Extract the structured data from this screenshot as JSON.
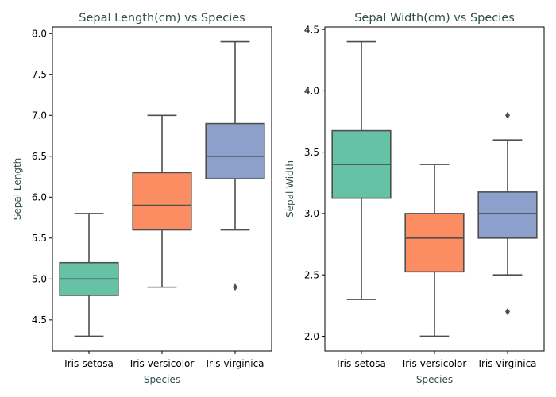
{
  "chart_data": [
    {
      "type": "box",
      "title": "Sepal Length(cm) vs Species",
      "xlabel": "Species",
      "ylabel": "Sepal Length",
      "categories": [
        "Iris-setosa",
        "Iris-versicolor",
        "Iris-virginica"
      ],
      "ylim": [
        4.12,
        8.08
      ],
      "yticks": [
        4.5,
        5.0,
        5.5,
        6.0,
        6.5,
        7.0,
        7.5,
        8.0
      ],
      "ytick_labels": [
        "4.5",
        "5.0",
        "5.5",
        "6.0",
        "6.5",
        "7.0",
        "7.5",
        "8.0"
      ],
      "boxes": [
        {
          "category": "Iris-setosa",
          "whisker_low": 4.3,
          "q1": 4.8,
          "median": 5.0,
          "q3": 5.2,
          "whisker_high": 5.8,
          "outliers": [],
          "color": "#66c2a5"
        },
        {
          "category": "Iris-versicolor",
          "whisker_low": 4.9,
          "q1": 5.6,
          "median": 5.9,
          "q3": 6.3,
          "whisker_high": 7.0,
          "outliers": [],
          "color": "#fc8d62"
        },
        {
          "category": "Iris-virginica",
          "whisker_low": 5.6,
          "q1": 6.225,
          "median": 6.5,
          "q3": 6.9,
          "whisker_high": 7.9,
          "outliers": [
            4.9
          ],
          "color": "#8da0cb"
        }
      ],
      "grid": false,
      "legend": "none"
    },
    {
      "type": "box",
      "title": "Sepal Width(cm) vs Species",
      "xlabel": "Species",
      "ylabel": "Sepal Width",
      "categories": [
        "Iris-setosa",
        "Iris-versicolor",
        "Iris-virginica"
      ],
      "ylim": [
        1.88,
        4.52
      ],
      "yticks": [
        2.0,
        2.5,
        3.0,
        3.5,
        4.0,
        4.5
      ],
      "ytick_labels": [
        "2.0",
        "2.5",
        "3.0",
        "3.5",
        "4.0",
        "4.5"
      ],
      "boxes": [
        {
          "category": "Iris-setosa",
          "whisker_low": 2.3,
          "q1": 3.125,
          "median": 3.4,
          "q3": 3.675,
          "whisker_high": 4.4,
          "outliers": [],
          "color": "#66c2a5"
        },
        {
          "category": "Iris-versicolor",
          "whisker_low": 2.0,
          "q1": 2.525,
          "median": 2.8,
          "q3": 3.0,
          "whisker_high": 3.4,
          "outliers": [],
          "color": "#fc8d62"
        },
        {
          "category": "Iris-virginica",
          "whisker_low": 2.5,
          "q1": 2.8,
          "median": 3.0,
          "q3": 3.175,
          "whisker_high": 3.6,
          "outliers": [
            2.2,
            3.8
          ],
          "color": "#8da0cb"
        }
      ],
      "grid": false,
      "legend": "none"
    }
  ],
  "colors": {
    "title_text": "#2f4f4f",
    "label_text": "#2f4f4f",
    "box_edge": "#4f4f4f",
    "axis": "#000000"
  }
}
